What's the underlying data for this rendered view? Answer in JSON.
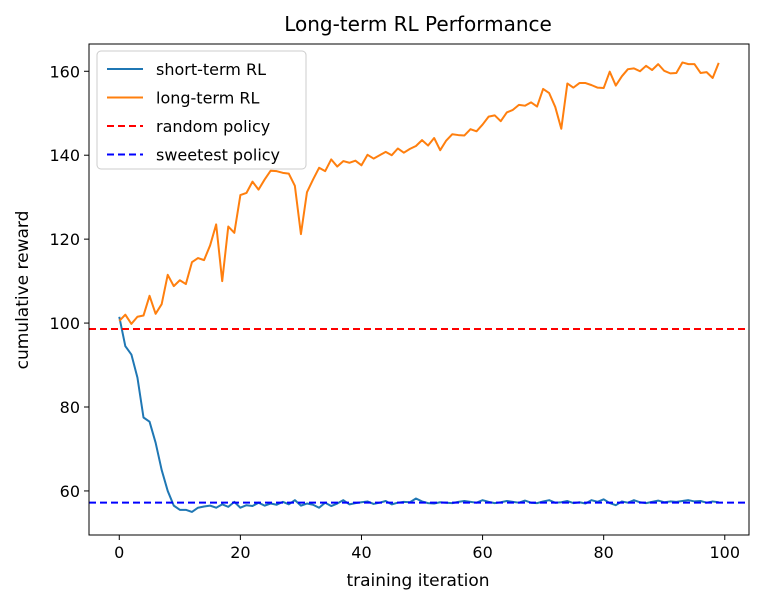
{
  "chart_data": {
    "type": "line",
    "title": "Long-term RL Performance",
    "xlabel": "training iteration",
    "ylabel": "cumulative reward",
    "xlim": [
      -5,
      104
    ],
    "ylim": [
      49.5,
      166.5
    ],
    "xticks": [
      0,
      20,
      40,
      60,
      80,
      100
    ],
    "yticks": [
      60,
      80,
      100,
      120,
      140,
      160
    ],
    "grid": false,
    "legend_position": "top-left",
    "series": [
      {
        "name": "short-term RL",
        "color": "#1f77b4",
        "style": "solid",
        "x": [
          0,
          1,
          2,
          3,
          4,
          5,
          6,
          7,
          8,
          9,
          10,
          11,
          12,
          13,
          14,
          15,
          16,
          17,
          18,
          19,
          20,
          21,
          22,
          23,
          24,
          25,
          26,
          27,
          28,
          29,
          30,
          31,
          32,
          33,
          34,
          35,
          36,
          37,
          38,
          39,
          40,
          41,
          42,
          43,
          44,
          45,
          46,
          47,
          48,
          49,
          50,
          51,
          52,
          53,
          54,
          55,
          56,
          57,
          58,
          59,
          60,
          61,
          62,
          63,
          64,
          65,
          66,
          67,
          68,
          69,
          70,
          71,
          72,
          73,
          74,
          75,
          76,
          77,
          78,
          79,
          80,
          81,
          82,
          83,
          84,
          85,
          86,
          87,
          88,
          89,
          90,
          91,
          92,
          93,
          94,
          95,
          96,
          97,
          98,
          99
        ],
        "values": [
          101.5,
          94.5,
          92.5,
          87,
          77.5,
          76.5,
          71.5,
          65,
          60,
          56.5,
          55.5,
          55.5,
          55,
          56,
          56.3,
          56.5,
          56,
          56.8,
          56.2,
          57.4,
          56,
          56.6,
          56.4,
          57.2,
          56.5,
          57,
          56.7,
          57.4,
          56.8,
          57.8,
          56.5,
          57,
          56.7,
          56,
          57.2,
          56.4,
          57,
          57.8,
          56.8,
          57.1,
          57.3,
          57.5,
          56.9,
          57.2,
          57.6,
          56.8,
          57.2,
          57.4,
          57.3,
          58.2,
          57.5,
          57.1,
          57,
          57.3,
          57.2,
          57.1,
          57.4,
          57.6,
          57.4,
          57.2,
          57.8,
          57.4,
          57.1,
          57.3,
          57.6,
          57.4,
          57.2,
          57.7,
          57.2,
          57.1,
          57.5,
          57.8,
          57.2,
          57.3,
          57.6,
          57.1,
          57.3,
          57,
          57.8,
          57.4,
          58,
          57.1,
          56.6,
          57.5,
          57.2,
          57.8,
          57.3,
          57.1,
          57.4,
          57.7,
          57.3,
          57.5,
          57.4,
          57.6,
          57.8,
          57.5,
          57.6,
          57.2,
          57.5,
          57.3
        ]
      },
      {
        "name": "long-term RL",
        "color": "#ff7f0e",
        "style": "solid",
        "x": [
          0,
          1,
          2,
          3,
          4,
          5,
          6,
          7,
          8,
          9,
          10,
          11,
          12,
          13,
          14,
          15,
          16,
          17,
          18,
          19,
          20,
          21,
          22,
          23,
          24,
          25,
          26,
          27,
          28,
          29,
          30,
          31,
          32,
          33,
          34,
          35,
          36,
          37,
          38,
          39,
          40,
          41,
          42,
          43,
          44,
          45,
          46,
          47,
          48,
          49,
          50,
          51,
          52,
          53,
          54,
          55,
          56,
          57,
          58,
          59,
          60,
          61,
          62,
          63,
          64,
          65,
          66,
          67,
          68,
          69,
          70,
          71,
          72,
          73,
          74,
          75,
          76,
          77,
          78,
          79,
          80,
          81,
          82,
          83,
          84,
          85,
          86,
          87,
          88,
          89,
          90,
          91,
          92,
          93,
          94,
          95,
          96,
          97,
          98,
          99
        ],
        "values": [
          100.5,
          102,
          99.8,
          101.5,
          101.8,
          106.5,
          102.2,
          104.5,
          111.5,
          108.8,
          110.2,
          109.3,
          114.5,
          115.5,
          115,
          118.5,
          123.5,
          110,
          123,
          121.5,
          130.5,
          131,
          133.7,
          131.8,
          134.2,
          136.3,
          136.2,
          135.8,
          135.6,
          132.7,
          121.2,
          131.2,
          134.2,
          137,
          136.2,
          139,
          137.3,
          138.6,
          138.2,
          138.7,
          137.6,
          140.1,
          139.2,
          140,
          140.8,
          140,
          141.6,
          140.6,
          141.5,
          142.2,
          143.6,
          142.3,
          144.1,
          141.2,
          143.5,
          145,
          144.8,
          144.7,
          146.2,
          145.7,
          147.3,
          149.2,
          149.5,
          148.1,
          150.2,
          150.8,
          152,
          151.8,
          152.6,
          151.6,
          155.8,
          154.8,
          151.5,
          146.3,
          157.1,
          156.1,
          157.2,
          157.2,
          156.7,
          156.1,
          156,
          159.9,
          156.6,
          158.8,
          160.5,
          160.7,
          160,
          161.3,
          160.3,
          161.7,
          160.1,
          159.5,
          159.6,
          162.1,
          161.7,
          161.7,
          159.6,
          159.8,
          158.4,
          162
        ]
      },
      {
        "name": "random policy",
        "color": "#ff0000",
        "style": "dashed",
        "value": 98.6
      },
      {
        "name": "sweetest policy",
        "color": "#0000ff",
        "style": "dashed",
        "value": 57.2
      }
    ]
  }
}
